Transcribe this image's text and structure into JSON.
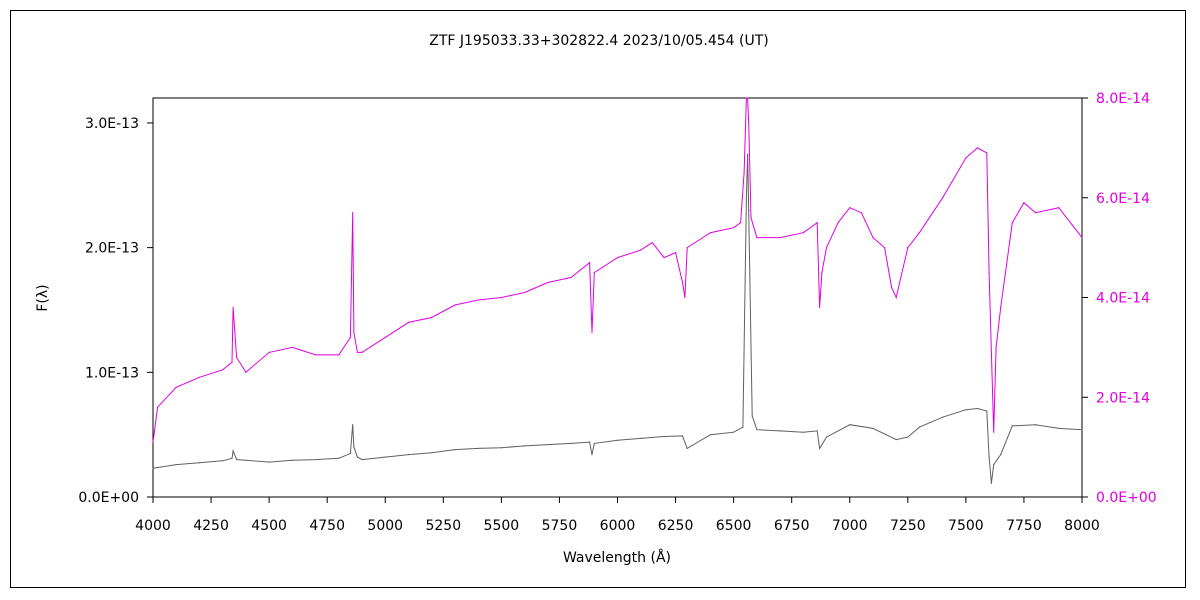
{
  "chart_data": {
    "type": "line",
    "title": "ZTF J195033.33+302822.4    2023/10/05.454 (UT)",
    "xlabel": "Wavelength (Å)",
    "ylabel": "F(λ)",
    "xlim": [
      4000,
      8000
    ],
    "ylim": [
      0,
      3.2e-13
    ],
    "y2lim": [
      0,
      8e-14
    ],
    "x_ticks": [
      "4000",
      "4250",
      "4500",
      "4750",
      "5000",
      "5250",
      "5500",
      "5750",
      "6000",
      "6250",
      "6500",
      "6750",
      "7000",
      "7250",
      "7500",
      "7750",
      "8000"
    ],
    "y_ticks": [
      "0.0E+00",
      "1.0E-13",
      "2.0E-13",
      "3.0E-13"
    ],
    "y2_ticks": [
      "0.0E+00",
      "2.0E-14",
      "4.0E-14",
      "6.0E-14",
      "8.0E-14"
    ],
    "grid": false,
    "colors": {
      "left_series": "#606060",
      "right_series": "#e000e0",
      "right_axis": "#e000e0",
      "axis": "#000000"
    },
    "series": [
      {
        "axis": "left",
        "x": [
          4000,
          4100,
          4200,
          4300,
          4340,
          4345,
          4360,
          4400,
          4500,
          4600,
          4700,
          4800,
          4850,
          4860,
          4865,
          4880,
          4900,
          5000,
          5100,
          5200,
          5300,
          5400,
          5500,
          5600,
          5700,
          5800,
          5880,
          5890,
          5900,
          6000,
          6100,
          6200,
          6280,
          6300,
          6400,
          6500,
          6540,
          6555,
          6560,
          6565,
          6580,
          6600,
          6700,
          6800,
          6860,
          6870,
          6900,
          7000,
          7100,
          7200,
          7250,
          7300,
          7400,
          7500,
          7550,
          7590,
          7600,
          7610,
          7620,
          7650,
          7700,
          7800,
          7900,
          8000
        ],
        "y": [
          2.3e-14,
          2.6e-14,
          2.75e-14,
          2.9e-14,
          3.1e-14,
          3.7e-14,
          3e-14,
          2.95e-14,
          2.8e-14,
          2.95e-14,
          3e-14,
          3.1e-14,
          3.5e-14,
          5.8e-14,
          4e-14,
          3.2e-14,
          3e-14,
          3.2e-14,
          3.4e-14,
          3.55e-14,
          3.8e-14,
          3.9e-14,
          3.95e-14,
          4.1e-14,
          4.2e-14,
          4.3e-14,
          4.4e-14,
          3.4e-14,
          4.3e-14,
          4.55e-14,
          4.7e-14,
          4.85e-14,
          4.9e-14,
          3.9e-14,
          5e-14,
          5.2e-14,
          5.6e-14,
          2.4e-13,
          2.75e-13,
          2.3e-13,
          6.5e-14,
          5.4e-14,
          5.3e-14,
          5.2e-14,
          5.3e-14,
          3.9e-14,
          4.8e-14,
          5.8e-14,
          5.5e-14,
          4.6e-14,
          4.8e-14,
          5.6e-14,
          6.4e-14,
          7e-14,
          7.1e-14,
          6.9e-14,
          3.2e-14,
          1.1e-14,
          2.6e-14,
          3.4e-14,
          5.7e-14,
          5.8e-14,
          5.5e-14,
          5.4e-14
        ]
      },
      {
        "axis": "right",
        "x": [
          4000,
          4020,
          4100,
          4200,
          4300,
          4340,
          4345,
          4360,
          4400,
          4500,
          4600,
          4700,
          4800,
          4850,
          4860,
          4865,
          4880,
          4900,
          5000,
          5100,
          5200,
          5300,
          5400,
          5500,
          5600,
          5700,
          5800,
          5880,
          5890,
          5900,
          6000,
          6100,
          6150,
          6200,
          6250,
          6280,
          6290,
          6300,
          6400,
          6500,
          6530,
          6545,
          6555,
          6560,
          6565,
          6575,
          6600,
          6700,
          6800,
          6860,
          6870,
          6880,
          6900,
          6950,
          7000,
          7050,
          7100,
          7150,
          7180,
          7200,
          7250,
          7300,
          7400,
          7500,
          7550,
          7590,
          7600,
          7620,
          7630,
          7650,
          7700,
          7750,
          7800,
          7900,
          8000
        ],
        "y": [
          1.1e-14,
          1.8e-14,
          2.2e-14,
          2.4e-14,
          2.55e-14,
          2.7e-14,
          3.8e-14,
          2.8e-14,
          2.5e-14,
          2.9e-14,
          3e-14,
          2.85e-14,
          2.85e-14,
          3.2e-14,
          5.7e-14,
          3.3e-14,
          2.9e-14,
          2.9e-14,
          3.2e-14,
          3.5e-14,
          3.6e-14,
          3.85e-14,
          3.95e-14,
          4e-14,
          4.1e-14,
          4.3e-14,
          4.4e-14,
          4.7e-14,
          3.3e-14,
          4.5e-14,
          4.8e-14,
          4.95e-14,
          5.1e-14,
          4.8e-14,
          4.9e-14,
          4.3e-14,
          4e-14,
          5e-14,
          5.3e-14,
          5.4e-14,
          5.5e-14,
          6.5e-14,
          8e-14,
          8e-14,
          7.5e-14,
          5.6e-14,
          5.2e-14,
          5.2e-14,
          5.3e-14,
          5.5e-14,
          3.8e-14,
          4.5e-14,
          5e-14,
          5.5e-14,
          5.8e-14,
          5.7e-14,
          5.2e-14,
          5e-14,
          4.2e-14,
          4e-14,
          5e-14,
          5.3e-14,
          6e-14,
          6.8e-14,
          7e-14,
          6.9e-14,
          4.5e-14,
          1.3e-14,
          3e-14,
          3.8e-14,
          5.5e-14,
          5.9e-14,
          5.7e-14,
          5.8e-14,
          5.2e-14
        ]
      }
    ]
  }
}
